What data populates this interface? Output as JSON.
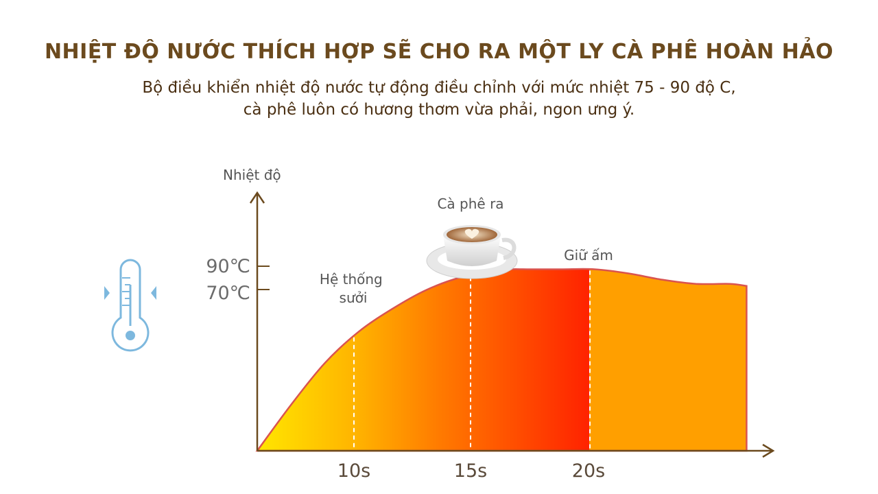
{
  "header": {
    "title": "NHIỆT ĐỘ NƯỚC THÍCH HỢP SẼ CHO RA MỘT LY CÀ PHÊ HOÀN HẢO",
    "subtitle_line1": "Bộ điều khiển nhiệt độ nước tự động điều chỉnh với mức nhiệt 75 - 90 độ C,",
    "subtitle_line2": "cà phê luôn có hương thơm vừa phải, ngon ưng ý."
  },
  "colors": {
    "title": "#6b4a1e",
    "axis": "#6b4a1e",
    "curve_stroke": "#d9534f",
    "gradient_yellow": "#ffe000",
    "gradient_orange": "#ff8c00",
    "gradient_red": "#ff2a00",
    "hold_fill": "#ff9f00",
    "thermometer": "#7db8de"
  },
  "icons": [
    "thermometer-icon",
    "coffee-cup-icon"
  ],
  "chart_data": {
    "type": "area",
    "ylabel": "Nhiệt độ",
    "x_ticks": [
      "10s",
      "15s",
      "20s"
    ],
    "y_ticks": [
      "90℃",
      "70℃"
    ],
    "annotations": [
      "Hệ thống sưởi",
      "Cà phê ra",
      "Giữ ấm"
    ],
    "x_range": [
      0,
      30
    ],
    "y_range": [
      0,
      100
    ],
    "series": [
      {
        "x": [
          0,
          2,
          4,
          6,
          8,
          10,
          12,
          14,
          15,
          16,
          18,
          20,
          22,
          24,
          26,
          28,
          29
        ],
        "y": [
          0,
          22,
          42,
          57,
          68,
          77,
          83,
          86,
          87,
          87,
          87,
          87,
          85,
          82,
          80,
          80,
          79
        ]
      }
    ],
    "segments": [
      {
        "x_end": 10,
        "label": "Hệ thống sưởi"
      },
      {
        "x_end": 15,
        "label": "Cà phê ra"
      },
      {
        "x_end": 20,
        "label": "Giữ ấm"
      }
    ]
  }
}
